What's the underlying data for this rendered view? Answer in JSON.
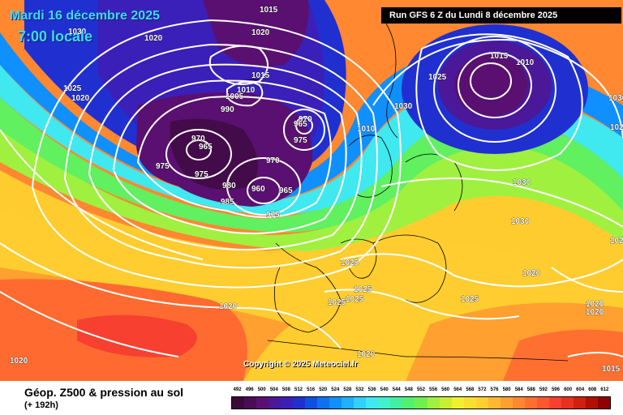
{
  "header": {
    "date_line": "Mardi 16 décembre 2025",
    "time_line": "7:00 locale",
    "run_info": "Run GFS 6 Z du Lundi 8 décembre 2025",
    "copyright": "Copyright © 2025 Meteociel.fr"
  },
  "legend": {
    "title": "Géop. Z500 & pression au sol",
    "subtitle": "(+ 192h)",
    "scale_values": [
      "492",
      "496",
      "500",
      "504",
      "508",
      "512",
      "516",
      "520",
      "524",
      "528",
      "532",
      "536",
      "540",
      "544",
      "548",
      "552",
      "556",
      "560",
      "564",
      "568",
      "572",
      "576",
      "580",
      "584",
      "588",
      "592",
      "596",
      "600",
      "604",
      "608",
      "612"
    ],
    "scale_colors": [
      "#3a0a3a",
      "#4a0c55",
      "#5a1070",
      "#4a1898",
      "#3a20b8",
      "#2030d0",
      "#1050e0",
      "#1070f0",
      "#1090ff",
      "#20b0ff",
      "#30d0ff",
      "#40e8f0",
      "#40f0d0",
      "#40f0a0",
      "#50f070",
      "#70f050",
      "#a0f040",
      "#c8f030",
      "#f0f030",
      "#f8e030",
      "#ffd030",
      "#ffb830",
      "#ffa030",
      "#ff8830",
      "#ff7030",
      "#ff5830",
      "#f84030",
      "#e83020",
      "#d02010",
      "#b01000",
      "#900000"
    ]
  },
  "isobar_labels": [
    {
      "text": "1015"
    },
    {
      "text": "1030"
    },
    {
      "text": "1020"
    },
    {
      "text": "1025"
    },
    {
      "text": "1020"
    },
    {
      "text": "1020"
    },
    {
      "text": "1015"
    },
    {
      "text": "1010"
    },
    {
      "text": "1005"
    },
    {
      "text": "990"
    },
    {
      "text": "970"
    },
    {
      "text": "965"
    },
    {
      "text": "975"
    },
    {
      "text": "975"
    },
    {
      "text": "970"
    },
    {
      "text": "965"
    },
    {
      "text": "975"
    },
    {
      "text": "970"
    },
    {
      "text": "980"
    },
    {
      "text": "960"
    },
    {
      "text": "965"
    },
    {
      "text": "985"
    },
    {
      "text": "975"
    },
    {
      "text": "1010"
    },
    {
      "text": "1030"
    },
    {
      "text": "1025"
    },
    {
      "text": "1030"
    },
    {
      "text": "1030"
    },
    {
      "text": "1030"
    },
    {
      "text": "1025"
    },
    {
      "text": "1025"
    },
    {
      "text": "1025"
    },
    {
      "text": "1025"
    },
    {
      "text": "1025"
    },
    {
      "text": "1020"
    },
    {
      "text": "1020"
    },
    {
      "text": "1020"
    },
    {
      "text": "1020"
    },
    {
      "text": "1020"
    },
    {
      "text": "1020"
    },
    {
      "text": "1015"
    },
    {
      "text": "1020"
    },
    {
      "text": "1015"
    },
    {
      "text": "1010"
    },
    {
      "text": "1025"
    }
  ]
}
